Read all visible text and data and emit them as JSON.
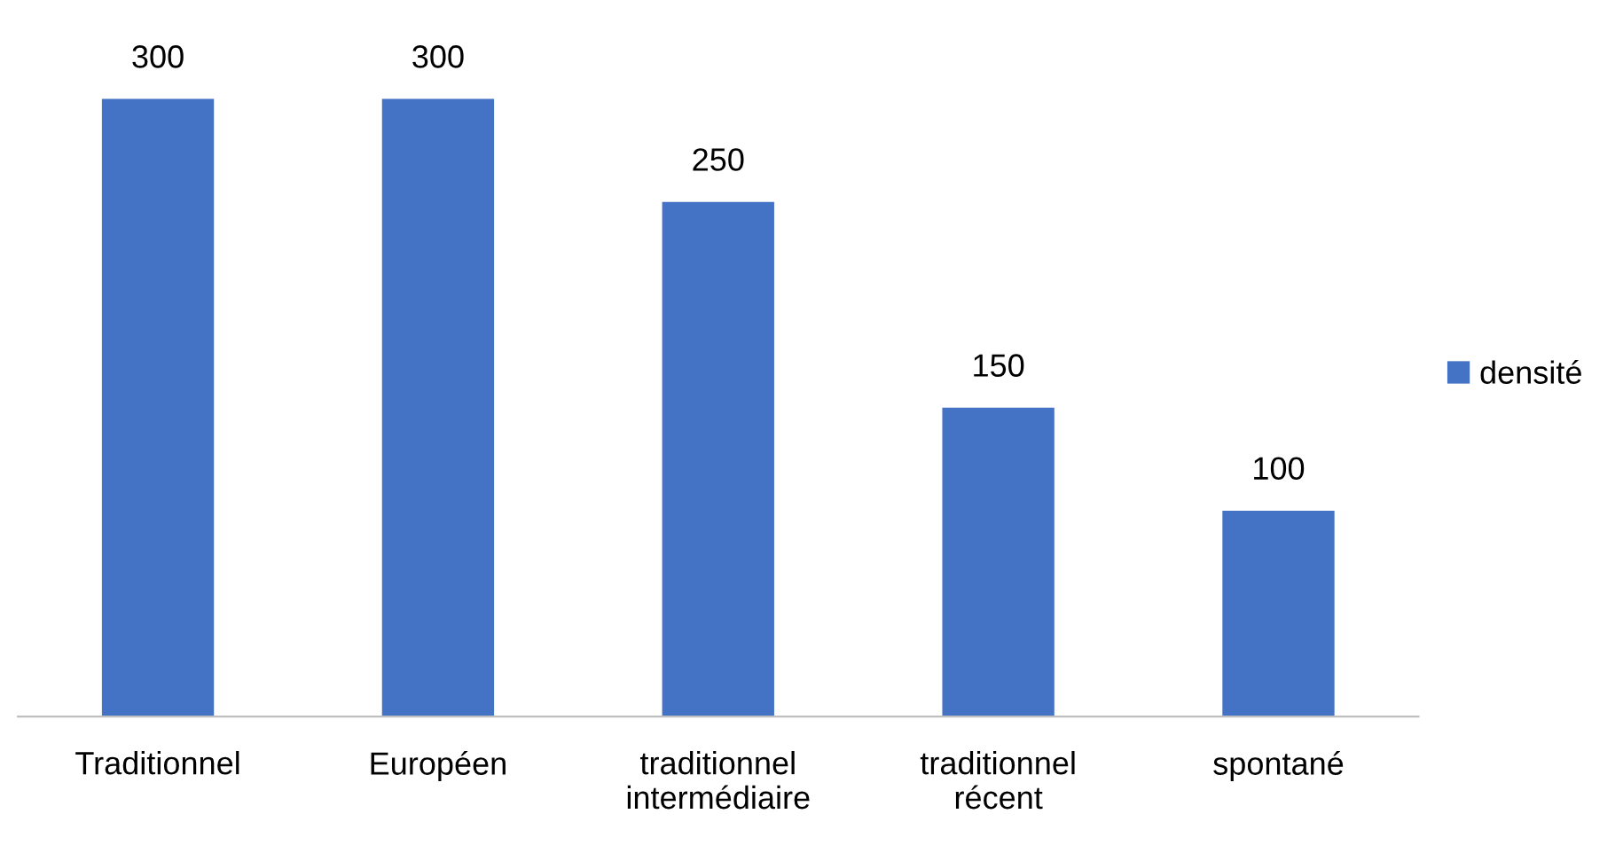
{
  "chart_data": {
    "type": "bar",
    "categories": [
      "Traditionnel",
      "Européen",
      "traditionnel\nintermédiaire",
      "traditionnel\nrécent",
      "spontané"
    ],
    "series": [
      {
        "name": "densité",
        "color": "#4472c4",
        "values": [
          300,
          300,
          250,
          150,
          100
        ]
      }
    ],
    "data_labels": true,
    "legend": "right"
  }
}
